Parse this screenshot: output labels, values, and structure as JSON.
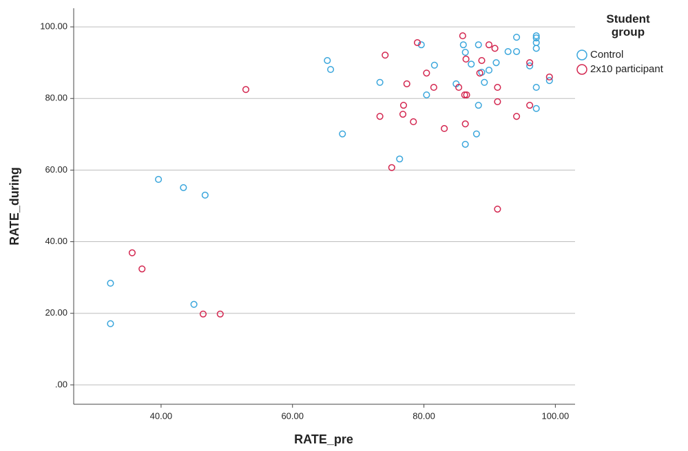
{
  "chart_data": {
    "type": "scatter",
    "x_label": "RATE_pre",
    "y_label": "RATE_during",
    "legend_title": "Student group",
    "xlim": [
      26.7,
      103.0
    ],
    "ylim": [
      -5.4,
      105.2
    ],
    "xticks": [
      {
        "value": 40,
        "label": "40.00"
      },
      {
        "value": 60,
        "label": "60.00"
      },
      {
        "value": 80,
        "label": "80.00"
      },
      {
        "value": 100,
        "label": "100.00"
      }
    ],
    "yticks": [
      {
        "value": 0,
        "label": ".00"
      },
      {
        "value": 20,
        "label": "20.00"
      },
      {
        "value": 40,
        "label": "40.00"
      },
      {
        "value": 60,
        "label": "60.00"
      },
      {
        "value": 80,
        "label": "80.00"
      },
      {
        "value": 100,
        "label": "100.00"
      }
    ],
    "grid": true,
    "legend": "right",
    "series": [
      {
        "name": "Control",
        "color": "#3aa6dc",
        "x": [
          32.3,
          32.3,
          39.6,
          43.4,
          46.7,
          45.0,
          65.3,
          65.8,
          67.6,
          73.3,
          76.3,
          79.6,
          80.4,
          81.6,
          84.9,
          86.0,
          86.3,
          86.3,
          87.2,
          88.0,
          88.3,
          88.3,
          88.8,
          89.2,
          89.9,
          91.0,
          92.8,
          94.1,
          94.1,
          96.1,
          97.1,
          97.1,
          97.1,
          97.1,
          97.1,
          97.1,
          99.1
        ],
        "values": [
          28.4,
          17.1,
          57.4,
          55.1,
          53.0,
          22.5,
          90.6,
          88.1,
          70.1,
          84.5,
          63.1,
          95.0,
          81.0,
          89.3,
          84.1,
          95.0,
          92.9,
          67.2,
          89.6,
          70.1,
          95.0,
          78.1,
          87.3,
          84.5,
          87.9,
          90.0,
          93.1,
          97.1,
          93.1,
          89.1,
          97.5,
          96.9,
          95.6,
          94.0,
          83.1,
          77.2,
          85.0
        ]
      },
      {
        "name": "2x10 participant",
        "color": "#d3264f",
        "x": [
          35.6,
          37.1,
          46.4,
          49.0,
          52.9,
          73.3,
          74.1,
          75.1,
          76.8,
          76.9,
          77.4,
          78.4,
          79.0,
          80.4,
          81.5,
          83.1,
          85.3,
          85.9,
          86.2,
          86.4,
          86.5,
          86.3,
          88.5,
          88.8,
          89.9,
          90.8,
          91.2,
          91.2,
          91.2,
          94.1,
          96.1,
          96.1,
          99.1
        ],
        "values": [
          36.9,
          32.4,
          19.8,
          19.8,
          82.5,
          75.0,
          92.1,
          60.7,
          75.6,
          78.1,
          84.1,
          73.5,
          95.6,
          87.1,
          83.1,
          71.6,
          83.1,
          97.5,
          81.0,
          91.0,
          81.0,
          72.9,
          87.1,
          90.6,
          95.0,
          94.0,
          83.1,
          79.1,
          49.1,
          75.0,
          90.0,
          78.1,
          86.0
        ]
      }
    ]
  }
}
